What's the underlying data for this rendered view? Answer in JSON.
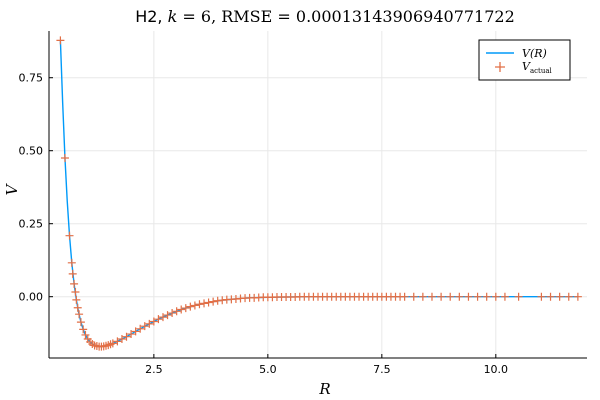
{
  "chart_data": {
    "type": "line",
    "title": {
      "prefix": "H2, ",
      "k_symbol": "k",
      "k_value": "6",
      "rmse_symbol": "RMSE",
      "rmse_value": "0.00013143906940771722"
    },
    "xlabel": "R",
    "ylabel": "V",
    "xlim": [
      0.2,
      12.0
    ],
    "ylim": [
      -0.21,
      0.91
    ],
    "x_ticks": [
      2.5,
      5.0,
      7.5,
      10.0
    ],
    "x_tick_labels": [
      "2.5",
      "5.0",
      "7.5",
      "10.0"
    ],
    "y_ticks": [
      0.0,
      0.25,
      0.5,
      0.75
    ],
    "y_tick_labels": [
      "0.00",
      "0.25",
      "0.50",
      "0.75"
    ],
    "grid": true,
    "legend_position": "top-right",
    "colors": {
      "fit_line": "#009af9",
      "actual_markers": "#e26f46"
    },
    "series": [
      {
        "name_main": "V",
        "name_arg": "(R)",
        "kind": "line",
        "x": [
          0.45,
          0.5,
          0.55,
          0.6,
          0.65,
          0.7,
          0.75,
          0.8,
          0.85,
          0.9,
          0.95,
          1.0,
          1.05,
          1.1,
          1.15,
          1.2,
          1.25,
          1.3,
          1.35,
          1.4,
          1.45,
          1.5,
          1.6,
          1.7,
          1.8,
          1.9,
          2.0,
          2.2,
          2.4,
          2.6,
          2.8,
          3.0,
          3.2,
          3.4,
          3.6,
          3.8,
          4.0,
          4.2,
          4.4,
          4.6,
          4.8,
          5.0,
          5.5,
          6.0,
          6.5,
          7.0,
          8.0,
          9.0,
          10.0,
          11.0,
          11.8
        ],
        "y": [
          0.878,
          0.663,
          0.475,
          0.327,
          0.209,
          0.116,
          0.044,
          -0.011,
          -0.054,
          -0.087,
          -0.112,
          -0.131,
          -0.145,
          -0.155,
          -0.162,
          -0.167,
          -0.169,
          -0.171,
          -0.171,
          -0.17,
          -0.168,
          -0.166,
          -0.16,
          -0.153,
          -0.145,
          -0.137,
          -0.128,
          -0.11,
          -0.093,
          -0.077,
          -0.063,
          -0.05,
          -0.039,
          -0.03,
          -0.023,
          -0.017,
          -0.012,
          -0.009,
          -0.006,
          -0.004,
          -0.003,
          -0.002,
          -0.001,
          0.0,
          0.0,
          0.0,
          0.0,
          0.0,
          0.0,
          0.0,
          0.0
        ]
      },
      {
        "name_main": "V",
        "name_sub": "actual",
        "kind": "markers",
        "x": [
          0.45,
          0.55,
          0.65,
          0.7,
          0.72,
          0.75,
          0.78,
          0.8,
          0.83,
          0.86,
          0.9,
          0.95,
          1.0,
          1.05,
          1.1,
          1.15,
          1.2,
          1.25,
          1.3,
          1.35,
          1.4,
          1.45,
          1.5,
          1.55,
          1.6,
          1.7,
          1.8,
          1.9,
          2.0,
          2.1,
          2.2,
          2.3,
          2.4,
          2.5,
          2.6,
          2.7,
          2.8,
          2.9,
          3.0,
          3.1,
          3.2,
          3.3,
          3.4,
          3.5,
          3.6,
          3.7,
          3.8,
          3.9,
          4.0,
          4.1,
          4.2,
          4.3,
          4.4,
          4.5,
          4.6,
          4.7,
          4.8,
          4.9,
          5.0,
          5.1,
          5.2,
          5.3,
          5.4,
          5.5,
          5.6,
          5.7,
          5.8,
          5.9,
          6.0,
          6.1,
          6.2,
          6.3,
          6.4,
          6.5,
          6.6,
          6.7,
          6.8,
          6.9,
          7.0,
          7.1,
          7.2,
          7.3,
          7.4,
          7.5,
          7.6,
          7.7,
          7.8,
          7.9,
          8.0,
          8.2,
          8.4,
          8.6,
          8.8,
          9.0,
          9.2,
          9.4,
          9.6,
          9.8,
          10.0,
          10.2,
          10.5,
          11.0,
          11.2,
          11.4,
          11.6,
          11.8
        ],
        "y": [
          0.878,
          0.475,
          0.209,
          0.116,
          0.078,
          0.044,
          0.016,
          -0.011,
          -0.038,
          -0.06,
          -0.087,
          -0.112,
          -0.131,
          -0.145,
          -0.155,
          -0.162,
          -0.167,
          -0.169,
          -0.171,
          -0.171,
          -0.17,
          -0.168,
          -0.166,
          -0.163,
          -0.16,
          -0.153,
          -0.145,
          -0.137,
          -0.128,
          -0.119,
          -0.11,
          -0.101,
          -0.093,
          -0.085,
          -0.077,
          -0.07,
          -0.063,
          -0.056,
          -0.05,
          -0.044,
          -0.039,
          -0.034,
          -0.03,
          -0.026,
          -0.023,
          -0.02,
          -0.017,
          -0.014,
          -0.012,
          -0.01,
          -0.009,
          -0.008,
          -0.006,
          -0.005,
          -0.004,
          -0.004,
          -0.003,
          -0.002,
          -0.002,
          -0.002,
          -0.001,
          -0.001,
          -0.001,
          -0.001,
          -0.001,
          0.0,
          0.0,
          0.0,
          0.0,
          0.0,
          0.0,
          0.0,
          0.0,
          0.0,
          0.0,
          0.0,
          0.0,
          0.0,
          0.0,
          0.0,
          0.0,
          0.0,
          0.0,
          0.0,
          0.0,
          0.0,
          0.0,
          0.0,
          0.0,
          0.0,
          0.0,
          0.0,
          0.0,
          0.0,
          0.0,
          0.0,
          0.0,
          0.0,
          0.0,
          0.0,
          0.0,
          0.0,
          0.0,
          0.0,
          0.0,
          0.0
        ]
      }
    ]
  }
}
